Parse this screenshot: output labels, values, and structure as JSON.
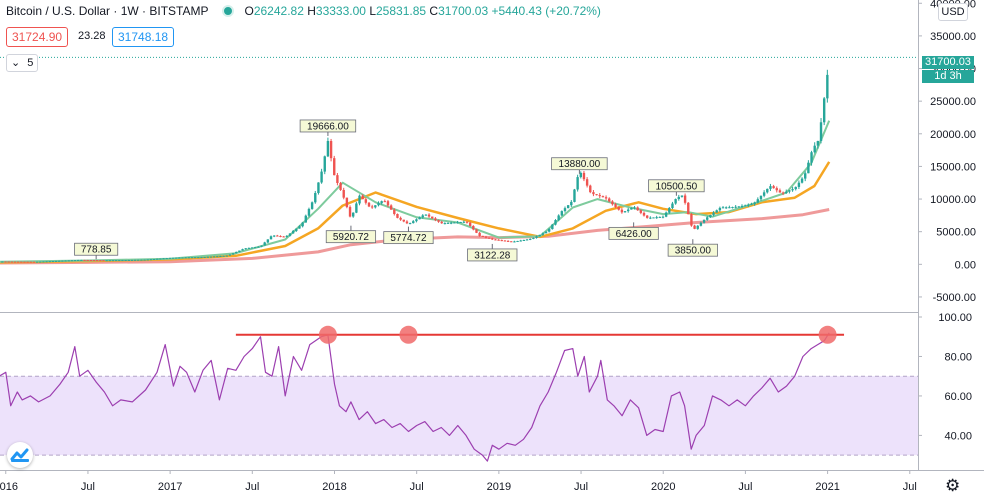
{
  "header": {
    "title": "Bitcoin / U.S. Dollar · 1W · BITSTAMP",
    "open_label": "O",
    "open": "26242.82",
    "high_label": "H",
    "high": "33333.00",
    "low_label": "L",
    "low": "25831.85",
    "close_label": "C",
    "close": "31700.03",
    "change": "+5440.43 (+20.72%)"
  },
  "bid": "31724.90",
  "spread": "23.28",
  "ask": "31748.18",
  "indicator_count": "5",
  "currency": "USD",
  "last_price": "31700.03",
  "countdown": "1d 3h",
  "colors": {
    "up": "#26a69a",
    "down": "#ef5350",
    "ma_fast": "#7ecb9d",
    "ma_mid": "#f5a623",
    "ma_slow": "#ef9a9a",
    "rsi_line": "#9c3fb0",
    "rsi_band": "#ede2fb",
    "annotation_line": "#e53935",
    "annotation_circle": "#f06a6a"
  },
  "chart_data": [
    {
      "type": "line",
      "name": "price",
      "y_scale": "linear",
      "ylim": [
        -7000,
        40500
      ],
      "y_ticks": [
        -5000,
        0,
        5000,
        10000,
        15000,
        20000,
        25000,
        30000,
        35000,
        40000
      ],
      "y_tick_labels": [
        "-5000.00",
        "0.00",
        "5000.00",
        "10000.00",
        "15000.00",
        "20000.00",
        "25000.00",
        "30000.00",
        "35000.00",
        "40000.00"
      ],
      "x_labels": [
        {
          "t": 2016.0,
          "label": "2016"
        },
        {
          "t": 2016.5,
          "label": "Jul"
        },
        {
          "t": 2017.0,
          "label": "2017"
        },
        {
          "t": 2017.5,
          "label": "Jul"
        },
        {
          "t": 2018.0,
          "label": "2018"
        },
        {
          "t": 2018.5,
          "label": "Jul"
        },
        {
          "t": 2019.0,
          "label": "2019"
        },
        {
          "t": 2019.5,
          "label": "Jul"
        },
        {
          "t": 2020.0,
          "label": "2020"
        },
        {
          "t": 2020.5,
          "label": "Jul"
        },
        {
          "t": 2021.0,
          "label": "2021"
        },
        {
          "t": 2021.5,
          "label": "Jul"
        }
      ],
      "price_points": [
        [
          2015.96,
          430
        ],
        [
          2016.2,
          420
        ],
        [
          2016.45,
          650
        ],
        [
          2016.6,
          620
        ],
        [
          2016.85,
          740
        ],
        [
          2017.0,
          960
        ],
        [
          2017.2,
          1100
        ],
        [
          2017.35,
          1400
        ],
        [
          2017.45,
          2500
        ],
        [
          2017.55,
          2700
        ],
        [
          2017.62,
          4300
        ],
        [
          2017.7,
          4000
        ],
        [
          2017.8,
          6000
        ],
        [
          2017.87,
          10000
        ],
        [
          2017.92,
          14500
        ],
        [
          2017.96,
          19666
        ],
        [
          2018.0,
          14000
        ],
        [
          2018.05,
          11000
        ],
        [
          2018.1,
          7000
        ],
        [
          2018.15,
          10500
        ],
        [
          2018.22,
          8300
        ],
        [
          2018.3,
          9500
        ],
        [
          2018.38,
          7000
        ],
        [
          2018.45,
          6200
        ],
        [
          2018.55,
          8000
        ],
        [
          2018.65,
          6500
        ],
        [
          2018.8,
          6400
        ],
        [
          2018.88,
          4200
        ],
        [
          2018.96,
          3700
        ],
        [
          2019.08,
          3500
        ],
        [
          2019.2,
          4100
        ],
        [
          2019.3,
          5300
        ],
        [
          2019.38,
          8000
        ],
        [
          2019.44,
          9200
        ],
        [
          2019.49,
          13880
        ],
        [
          2019.56,
          10500
        ],
        [
          2019.65,
          10100
        ],
        [
          2019.75,
          8200
        ],
        [
          2019.82,
          9200
        ],
        [
          2019.9,
          7300
        ],
        [
          2020.0,
          7200
        ],
        [
          2020.08,
          9800
        ],
        [
          2020.12,
          10200
        ],
        [
          2020.18,
          5000
        ],
        [
          2020.25,
          6800
        ],
        [
          2020.35,
          9000
        ],
        [
          2020.45,
          9200
        ],
        [
          2020.55,
          9400
        ],
        [
          2020.65,
          11700
        ],
        [
          2020.72,
          10400
        ],
        [
          2020.8,
          11300
        ],
        [
          2020.86,
          13500
        ],
        [
          2020.91,
          18000
        ],
        [
          2020.94,
          19200
        ],
        [
          2020.97,
          24000
        ],
        [
          2020.99,
          29000
        ],
        [
          2021.01,
          31700
        ]
      ],
      "ma_fast_points": [
        [
          2015.96,
          400
        ],
        [
          2016.5,
          580
        ],
        [
          2017.0,
          850
        ],
        [
          2017.4,
          1700
        ],
        [
          2017.7,
          3800
        ],
        [
          2017.9,
          8500
        ],
        [
          2018.05,
          12500
        ],
        [
          2018.25,
          9500
        ],
        [
          2018.5,
          7200
        ],
        [
          2018.75,
          6400
        ],
        [
          2019.0,
          4100
        ],
        [
          2019.25,
          4300
        ],
        [
          2019.45,
          8700
        ],
        [
          2019.6,
          10000
        ],
        [
          2019.8,
          8700
        ],
        [
          2020.0,
          7700
        ],
        [
          2020.15,
          8000
        ],
        [
          2020.3,
          7300
        ],
        [
          2020.55,
          9300
        ],
        [
          2020.75,
          11000
        ],
        [
          2020.9,
          15500
        ],
        [
          2021.01,
          22000
        ]
      ],
      "ma_mid_points": [
        [
          2015.96,
          300
        ],
        [
          2016.5,
          500
        ],
        [
          2017.0,
          750
        ],
        [
          2017.4,
          1300
        ],
        [
          2017.7,
          2800
        ],
        [
          2017.9,
          5500
        ],
        [
          2018.05,
          9000
        ],
        [
          2018.25,
          11000
        ],
        [
          2018.5,
          8800
        ],
        [
          2018.75,
          7100
        ],
        [
          2019.0,
          5500
        ],
        [
          2019.25,
          4200
        ],
        [
          2019.45,
          5500
        ],
        [
          2019.65,
          8200
        ],
        [
          2019.85,
          9500
        ],
        [
          2020.0,
          8500
        ],
        [
          2020.2,
          7700
        ],
        [
          2020.4,
          8000
        ],
        [
          2020.6,
          9500
        ],
        [
          2020.8,
          10200
        ],
        [
          2020.92,
          12000
        ],
        [
          2021.01,
          15700
        ]
      ],
      "ma_slow_points": [
        [
          2015.96,
          200
        ],
        [
          2016.5,
          300
        ],
        [
          2017.0,
          400
        ],
        [
          2017.5,
          900
        ],
        [
          2017.9,
          1900
        ],
        [
          2018.1,
          3000
        ],
        [
          2018.4,
          3800
        ],
        [
          2018.75,
          4200
        ],
        [
          2019.0,
          4100
        ],
        [
          2019.3,
          4300
        ],
        [
          2019.6,
          5200
        ],
        [
          2019.9,
          5800
        ],
        [
          2020.2,
          6400
        ],
        [
          2020.6,
          7000
        ],
        [
          2020.85,
          7600
        ],
        [
          2021.01,
          8400
        ]
      ],
      "labels": [
        {
          "t": 2016.55,
          "value": 778.85,
          "text": "778.85",
          "position": "above"
        },
        {
          "t": 2017.96,
          "value": 19666,
          "text": "19666.00",
          "position": "above"
        },
        {
          "t": 2018.1,
          "value": 5920.72,
          "text": "5920.72",
          "position": "below"
        },
        {
          "t": 2018.45,
          "value": 5774.72,
          "text": "5774.72",
          "position": "below"
        },
        {
          "t": 2018.96,
          "value": 3122.28,
          "text": "3122.28",
          "position": "below"
        },
        {
          "t": 2019.49,
          "value": 13880,
          "text": "13880.00",
          "position": "above"
        },
        {
          "t": 2019.82,
          "value": 6426,
          "text": "6426.00",
          "position": "below"
        },
        {
          "t": 2020.08,
          "value": 10500.5,
          "text": "10500.50",
          "position": "above"
        },
        {
          "t": 2020.18,
          "value": 3850,
          "text": "3850.00",
          "position": "below"
        }
      ]
    },
    {
      "type": "line",
      "name": "rsi",
      "ylim": [
        25,
        100
      ],
      "y_ticks": [
        40,
        60,
        80,
        100
      ],
      "y_tick_labels": [
        "40.00",
        "60.00",
        "80.00",
        "100.00"
      ],
      "band": [
        30,
        70
      ],
      "rsi_points": [
        [
          2015.96,
          70
        ],
        [
          2016.0,
          72
        ],
        [
          2016.03,
          55
        ],
        [
          2016.07,
          62
        ],
        [
          2016.1,
          58
        ],
        [
          2016.15,
          60
        ],
        [
          2016.2,
          57
        ],
        [
          2016.27,
          60
        ],
        [
          2016.33,
          66
        ],
        [
          2016.38,
          72
        ],
        [
          2016.42,
          85
        ],
        [
          2016.45,
          70
        ],
        [
          2016.5,
          73
        ],
        [
          2016.55,
          67
        ],
        [
          2016.6,
          62
        ],
        [
          2016.65,
          55
        ],
        [
          2016.7,
          58
        ],
        [
          2016.77,
          57
        ],
        [
          2016.85,
          63
        ],
        [
          2016.92,
          72
        ],
        [
          2016.97,
          86
        ],
        [
          2017.02,
          65
        ],
        [
          2017.06,
          75
        ],
        [
          2017.1,
          72
        ],
        [
          2017.15,
          62
        ],
        [
          2017.2,
          73
        ],
        [
          2017.25,
          78
        ],
        [
          2017.3,
          58
        ],
        [
          2017.35,
          74
        ],
        [
          2017.4,
          73
        ],
        [
          2017.45,
          80
        ],
        [
          2017.5,
          84
        ],
        [
          2017.55,
          90
        ],
        [
          2017.58,
          72
        ],
        [
          2017.62,
          70
        ],
        [
          2017.66,
          85
        ],
        [
          2017.7,
          60
        ],
        [
          2017.75,
          80
        ],
        [
          2017.8,
          73
        ],
        [
          2017.85,
          86
        ],
        [
          2017.92,
          90
        ],
        [
          2017.96,
          91
        ],
        [
          2018.0,
          66
        ],
        [
          2018.03,
          55
        ],
        [
          2018.07,
          52
        ],
        [
          2018.1,
          57
        ],
        [
          2018.15,
          48
        ],
        [
          2018.2,
          52
        ],
        [
          2018.25,
          46
        ],
        [
          2018.3,
          48
        ],
        [
          2018.35,
          44
        ],
        [
          2018.4,
          46
        ],
        [
          2018.45,
          42
        ],
        [
          2018.5,
          45
        ],
        [
          2018.55,
          47
        ],
        [
          2018.6,
          42
        ],
        [
          2018.65,
          44
        ],
        [
          2018.7,
          40
        ],
        [
          2018.75,
          45
        ],
        [
          2018.8,
          40
        ],
        [
          2018.85,
          33
        ],
        [
          2018.9,
          30
        ],
        [
          2018.93,
          27
        ],
        [
          2018.96,
          35
        ],
        [
          2019.0,
          33
        ],
        [
          2019.05,
          36
        ],
        [
          2019.1,
          35
        ],
        [
          2019.15,
          38
        ],
        [
          2019.2,
          44
        ],
        [
          2019.25,
          55
        ],
        [
          2019.3,
          62
        ],
        [
          2019.35,
          72
        ],
        [
          2019.4,
          83
        ],
        [
          2019.45,
          84
        ],
        [
          2019.48,
          70
        ],
        [
          2019.52,
          80
        ],
        [
          2019.55,
          62
        ],
        [
          2019.6,
          70
        ],
        [
          2019.62,
          78
        ],
        [
          2019.66,
          58
        ],
        [
          2019.7,
          55
        ],
        [
          2019.75,
          50
        ],
        [
          2019.8,
          58
        ],
        [
          2019.85,
          54
        ],
        [
          2019.9,
          40
        ],
        [
          2019.95,
          43
        ],
        [
          2020.0,
          42
        ],
        [
          2020.05,
          60
        ],
        [
          2020.1,
          62
        ],
        [
          2020.13,
          55
        ],
        [
          2020.17,
          33
        ],
        [
          2020.2,
          40
        ],
        [
          2020.25,
          45
        ],
        [
          2020.3,
          60
        ],
        [
          2020.35,
          58
        ],
        [
          2020.4,
          55
        ],
        [
          2020.45,
          58
        ],
        [
          2020.5,
          55
        ],
        [
          2020.55,
          60
        ],
        [
          2020.6,
          64
        ],
        [
          2020.65,
          69
        ],
        [
          2020.7,
          62
        ],
        [
          2020.75,
          65
        ],
        [
          2020.8,
          70
        ],
        [
          2020.85,
          80
        ],
        [
          2020.9,
          84
        ],
        [
          2020.94,
          86
        ],
        [
          2020.98,
          88
        ],
        [
          2021.01,
          92
        ]
      ],
      "annotation_line": {
        "t1": 2017.4,
        "t2": 2021.1,
        "value": 91
      },
      "annotation_points": [
        {
          "t": 2017.96,
          "value": 91
        },
        {
          "t": 2018.45,
          "value": 91
        },
        {
          "t": 2021.0,
          "value": 91
        }
      ]
    }
  ]
}
